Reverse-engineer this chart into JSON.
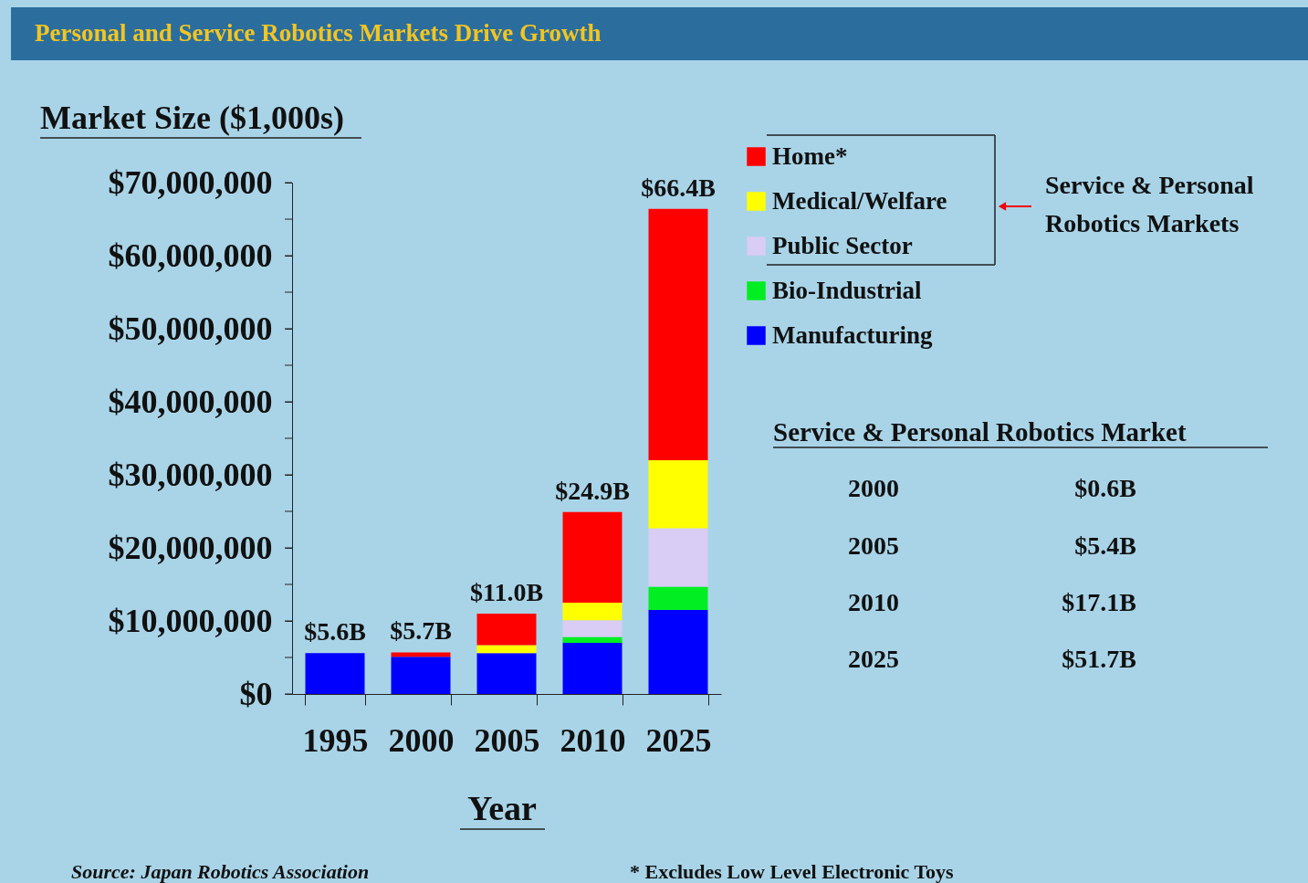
{
  "chart_data": {
    "type": "bar",
    "stacked": true,
    "title": "Personal and Service Robotics Markets Drive Growth",
    "ylabel": "Market Size ($1,000s)",
    "xlabel": "Year",
    "categories": [
      "1995",
      "2000",
      "2005",
      "2010",
      "2025"
    ],
    "series": [
      {
        "name": "Manufacturing",
        "color": "#0000ff",
        "values": [
          5600000,
          5100000,
          5600000,
          7000000,
          11500000
        ]
      },
      {
        "name": "Bio-Industrial",
        "color": "#00ee22",
        "values": [
          null,
          null,
          null,
          800000,
          3200000
        ]
      },
      {
        "name": "Public Sector",
        "color": "#d9ccf5",
        "values": [
          null,
          null,
          null,
          2300000,
          8000000
        ]
      },
      {
        "name": "Medical/Welfare",
        "color": "#ffff00",
        "values": [
          null,
          null,
          1100000,
          2400000,
          9300000
        ]
      },
      {
        "name": "Home*",
        "color": "#ff0000",
        "values": [
          null,
          600000,
          4300000,
          12400000,
          34400000
        ]
      }
    ],
    "totals": [
      "$5.6B",
      "$5.7B",
      "$11.0B",
      "$24.9B",
      "$66.4B"
    ],
    "ylim": [
      0,
      70000000
    ],
    "yticks": [
      {
        "value": 0,
        "label": "$0"
      },
      {
        "value": 5000000,
        "label": null
      },
      {
        "value": 10000000,
        "label": "$10,000,000"
      },
      {
        "value": 15000000,
        "label": null
      },
      {
        "value": 20000000,
        "label": "$20,000,000"
      },
      {
        "value": 25000000,
        "label": null
      },
      {
        "value": 30000000,
        "label": "$30,000,000"
      },
      {
        "value": 35000000,
        "label": null
      },
      {
        "value": 40000000,
        "label": "$40,000,000"
      },
      {
        "value": 45000000,
        "label": null
      },
      {
        "value": 50000000,
        "label": "$50,000,000"
      },
      {
        "value": 55000000,
        "label": null
      },
      {
        "value": 60000000,
        "label": "$60,000,000"
      },
      {
        "value": 65000000,
        "label": null
      },
      {
        "value": 70000000,
        "label": "$70,000,000"
      }
    ],
    "grid": false,
    "legend": "right",
    "annotations": [
      "Service & Personal",
      "Robotics Markets",
      "Service & Personal Robotics Market",
      "2000",
      "$0.6B",
      "2005",
      "$5.4B",
      "2010",
      "$17.1B",
      "2025",
      "$51.7B",
      "Source:  Japan Robotics Association",
      "* Excludes Low Level Electronic Toys"
    ]
  }
}
